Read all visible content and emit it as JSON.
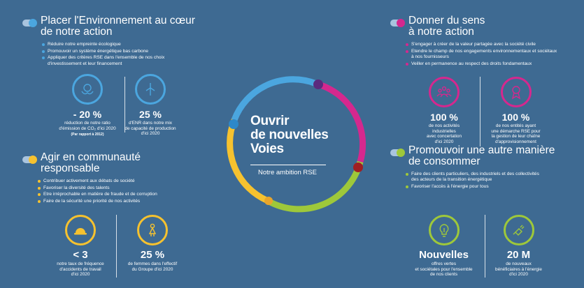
{
  "colors": {
    "blue": "#4ba6df",
    "magenta": "#d5288e",
    "yellow": "#f6c22f",
    "green": "#9ec83a",
    "purple": "#5b2a7e",
    "red": "#a01e22",
    "background": "#3e6a92"
  },
  "center": {
    "title_lines": [
      "Ouvrir",
      "de nouvelles",
      "Voies"
    ],
    "subtitle": "Notre ambition RSE"
  },
  "sections": {
    "environment": {
      "title_lines": [
        "Placer l'Environnement au cœur",
        "de notre action"
      ],
      "bullets": [
        "Réduire notre empreinte écologique",
        "Promouvoir un système énergétique bas carbone",
        "Appliquer des critères RSE dans l'ensemble de nos choix",
        "d'investissement et leur financement"
      ],
      "stats": [
        {
          "icon": "globe-hands-icon",
          "value": "- 20 %",
          "desc_lines": [
            "réduction de notre ratio",
            "d'émission de CO₂ d'ici 2020"
          ],
          "note": "(Par rapport à 2012)"
        },
        {
          "icon": "wind-turbine-icon",
          "value": "25 %",
          "desc_lines": [
            "d'ENR dans notre mix",
            "de capacité de production",
            "d'ici 2020"
          ]
        }
      ]
    },
    "sens": {
      "title_lines": [
        "Donner du sens",
        "à notre action"
      ],
      "bullets": [
        "S'engager à créer de la valeur partagée avec la société civile",
        "Etendre le champ de nos engagements environnementaux et sociétaux",
        "à nos fournisseurs",
        "Veiller en permanence au respect des droits fondamentaux"
      ],
      "stats": [
        {
          "icon": "people-group-icon",
          "value": "100 %",
          "desc_lines": [
            "de nos activités",
            "industrielles",
            "avec concertation",
            "d'ici 2020"
          ]
        },
        {
          "icon": "award-icon",
          "value": "100 %",
          "desc_lines": [
            "de nos entités ayant",
            "une démarche RSE pour",
            "la gestion de leur chaîne",
            "d'approvisionnement"
          ]
        }
      ]
    },
    "community": {
      "title_lines": [
        "Agir en communauté",
        "responsable"
      ],
      "bullets": [
        "Contribuer activement aux débats de société",
        "Favoriser la diversité des talents",
        "Etre irréprochable en matière de fraude et de corruption",
        "Faire de la sécurité une priorité de nos activités"
      ],
      "stats": [
        {
          "icon": "hard-hat-icon",
          "value": "< 3",
          "desc_lines": [
            "notre taux de fréquence",
            "d'accidents de travail",
            "d'ici 2020"
          ]
        },
        {
          "icon": "woman-icon",
          "value": "25 %",
          "desc_lines": [
            "de femmes dans l'effectif",
            "du Groupe d'ici 2020"
          ]
        }
      ]
    },
    "consume": {
      "title_lines": [
        "Promouvoir une autre manière",
        "de consommer"
      ],
      "bullets": [
        "Faire des clients particuliers, des industriels et des collectivités",
        "des acteurs de la transition énergétique",
        "Favoriser l'accès à l'énergie pour tous"
      ],
      "stats": [
        {
          "icon": "bulb-leaf-icon",
          "value": "Nouvelles",
          "desc_lines": [
            "offres vertes",
            "et sociétales pour l'ensemble",
            "de nos clients"
          ]
        },
        {
          "icon": "plug-leaf-icon",
          "value": "20 M",
          "desc_lines": [
            "de nouveaux",
            "bénéficiaires à l'énergie",
            "d'ici 2020"
          ]
        }
      ]
    }
  }
}
